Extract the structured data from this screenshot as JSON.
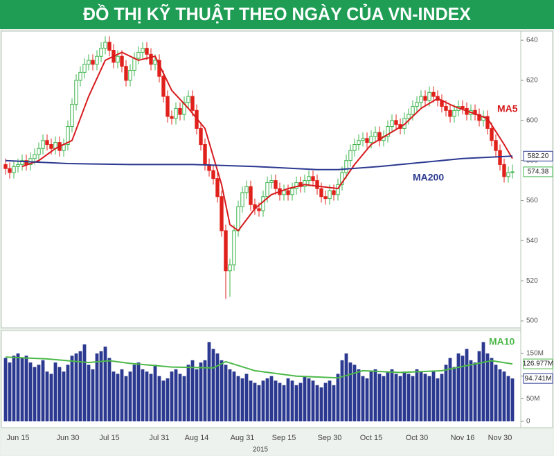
{
  "title": "ĐỒ THỊ KỸ THUẬT THEO NGÀY CỦA VN-INDEX",
  "chart_data": [
    {
      "type": "candlestick",
      "up_color": "#3cb44b",
      "down_color": "#e0201b",
      "ylim": [
        497.6,
        642.8
      ],
      "yticks": [
        500,
        520,
        540,
        560,
        580,
        600,
        620,
        640
      ],
      "open": [
        578,
        576,
        574,
        577,
        578,
        580,
        578,
        581,
        583,
        586,
        590,
        588,
        586,
        589,
        585,
        588,
        597,
        608,
        620,
        624,
        628,
        630,
        628,
        632,
        636,
        639,
        635,
        629,
        632,
        627,
        620,
        625,
        631,
        634,
        636,
        633,
        628,
        630,
        622,
        612,
        602,
        601,
        606,
        603,
        609,
        612,
        605,
        596,
        588,
        578,
        575,
        571,
        562,
        545,
        525,
        528,
        545,
        557,
        564,
        567,
        558,
        556,
        555,
        562,
        569,
        570,
        566,
        563,
        565,
        563,
        566,
        569,
        567,
        570,
        572,
        570,
        566,
        562,
        561,
        565,
        563,
        568,
        574,
        580,
        585,
        588,
        590,
        591,
        589,
        592,
        594,
        590,
        592,
        597,
        600,
        598,
        596,
        601,
        603,
        607,
        609,
        612,
        610,
        614,
        612,
        610,
        607,
        605,
        602,
        605,
        607,
        606,
        603,
        605,
        603,
        600,
        602,
        596,
        590,
        585,
        578,
        572,
        574
      ],
      "high": [
        581,
        579,
        580,
        581,
        583,
        583,
        584,
        586,
        589,
        593,
        593,
        591,
        592,
        592,
        591,
        600,
        611,
        623,
        627,
        631,
        633,
        633,
        635,
        639,
        642,
        642,
        638,
        635,
        635,
        630,
        628,
        634,
        637,
        639,
        639,
        636,
        633,
        633,
        625,
        615,
        605,
        609,
        609,
        612,
        615,
        615,
        608,
        599,
        591,
        581,
        578,
        574,
        565,
        548,
        531,
        548,
        560,
        567,
        570,
        570,
        561,
        559,
        565,
        572,
        573,
        573,
        569,
        568,
        568,
        569,
        572,
        572,
        573,
        575,
        575,
        573,
        569,
        565,
        568,
        568,
        571,
        577,
        583,
        588,
        591,
        593,
        594,
        594,
        595,
        597,
        597,
        595,
        600,
        603,
        603,
        601,
        604,
        606,
        610,
        612,
        615,
        615,
        617,
        617,
        615,
        613,
        610,
        608,
        608,
        610,
        610,
        609,
        608,
        608,
        606,
        605,
        605,
        599,
        593,
        588,
        581,
        577,
        578
      ],
      "low": [
        573,
        571,
        571,
        574,
        575,
        575,
        575,
        578,
        580,
        583,
        585,
        583,
        583,
        582,
        582,
        585,
        594,
        605,
        617,
        621,
        625,
        625,
        625,
        629,
        633,
        632,
        626,
        626,
        624,
        617,
        617,
        622,
        628,
        631,
        630,
        625,
        625,
        619,
        609,
        599,
        598,
        598,
        600,
        600,
        606,
        602,
        593,
        585,
        575,
        572,
        568,
        559,
        542,
        511,
        512,
        525,
        542,
        554,
        561,
        555,
        553,
        552,
        552,
        559,
        566,
        563,
        560,
        560,
        560,
        560,
        563,
        564,
        564,
        567,
        567,
        563,
        559,
        558,
        558,
        560,
        560,
        565,
        571,
        577,
        582,
        585,
        587,
        586,
        586,
        589,
        587,
        587,
        589,
        594,
        595,
        593,
        593,
        598,
        600,
        604,
        606,
        607,
        607,
        609,
        607,
        604,
        602,
        599,
        599,
        602,
        603,
        600,
        600,
        600,
        597,
        597,
        593,
        587,
        582,
        575,
        569,
        569,
        571
      ],
      "close": [
        576,
        574,
        577,
        578,
        580,
        578,
        581,
        583,
        586,
        590,
        588,
        586,
        589,
        585,
        588,
        597,
        608,
        620,
        624,
        628,
        630,
        628,
        632,
        636,
        639,
        635,
        629,
        632,
        627,
        620,
        625,
        631,
        634,
        636,
        633,
        628,
        630,
        622,
        612,
        602,
        601,
        606,
        603,
        609,
        612,
        605,
        596,
        588,
        578,
        575,
        571,
        562,
        545,
        525,
        528,
        545,
        557,
        564,
        567,
        558,
        556,
        555,
        562,
        569,
        570,
        566,
        563,
        565,
        563,
        566,
        569,
        567,
        570,
        572,
        570,
        566,
        562,
        561,
        565,
        563,
        568,
        574,
        580,
        585,
        588,
        590,
        591,
        589,
        592,
        594,
        590,
        592,
        597,
        600,
        598,
        596,
        601,
        603,
        607,
        609,
        612,
        610,
        614,
        612,
        610,
        607,
        605,
        602,
        605,
        607,
        606,
        603,
        605,
        603,
        600,
        602,
        596,
        590,
        585,
        578,
        572,
        574,
        574.38
      ],
      "last_value": 574.38,
      "lines": [
        {
          "name": "MA5",
          "color": "#d7191c",
          "x": [
            4,
            8,
            12,
            16,
            20,
            24,
            28,
            32,
            36,
            40,
            44,
            48,
            52,
            54,
            56,
            60,
            64,
            68,
            72,
            76,
            80,
            84,
            88,
            92,
            96,
            100,
            104,
            108,
            112,
            116,
            120,
            122
          ],
          "values": [
            577,
            580,
            586,
            590,
            612,
            630,
            634,
            630,
            632,
            615,
            606,
            596,
            568,
            548,
            545,
            556,
            563,
            566,
            568,
            567,
            566,
            578,
            588,
            593,
            598,
            606,
            611,
            607,
            604,
            601,
            588,
            581
          ]
        },
        {
          "name": "MA200",
          "color": "#2b3990",
          "x": [
            0,
            15,
            30,
            45,
            60,
            75,
            80,
            90,
            100,
            110,
            122
          ],
          "values": [
            580,
            578.5,
            578,
            578,
            577,
            575.5,
            575.5,
            577,
            579,
            581,
            582.2
          ],
          "last_label": {
            "value": 582.2,
            "label": "582.20"
          }
        }
      ]
    },
    {
      "type": "bar",
      "color": "#2b3990",
      "xlabel": "2015",
      "ylim": [
        -10.7,
        196
      ],
      "yticks": [
        0,
        {
          "value": 50,
          "label": "50M"
        },
        {
          "value": 100,
          "label": "100M"
        },
        {
          "value": 150,
          "label": "150M"
        }
      ],
      "categories": [
        null,
        null,
        null,
        "Jun 15",
        null,
        null,
        null,
        null,
        null,
        null,
        null,
        null,
        null,
        null,
        null,
        "Jun 30",
        null,
        null,
        null,
        null,
        null,
        null,
        null,
        null,
        null,
        "Jul 15",
        null,
        null,
        null,
        null,
        null,
        null,
        null,
        null,
        null,
        null,
        null,
        "Jul 31",
        null,
        null,
        null,
        null,
        null,
        null,
        null,
        null,
        "Aug 14",
        null,
        null,
        null,
        null,
        null,
        null,
        null,
        null,
        null,
        null,
        "Aug 31",
        null,
        null,
        null,
        null,
        null,
        null,
        null,
        null,
        null,
        "Sep 15",
        null,
        null,
        null,
        null,
        null,
        null,
        null,
        null,
        null,
        null,
        "Sep 30",
        null,
        null,
        null,
        null,
        null,
        null,
        null,
        null,
        null,
        "Oct 15",
        null,
        null,
        null,
        null,
        null,
        null,
        null,
        null,
        null,
        null,
        "Oct 30",
        null,
        null,
        null,
        null,
        null,
        null,
        null,
        null,
        null,
        null,
        "Nov 16",
        null,
        null,
        null,
        null,
        null,
        null,
        null,
        null,
        "Nov 30",
        null,
        null,
        null
      ],
      "values": [
        140,
        130,
        145,
        150,
        140,
        145,
        130,
        120,
        125,
        135,
        110,
        105,
        130,
        120,
        110,
        125,
        145,
        150,
        155,
        170,
        125,
        115,
        150,
        155,
        165,
        140,
        110,
        105,
        115,
        100,
        110,
        125,
        130,
        115,
        110,
        105,
        125,
        100,
        90,
        95,
        110,
        115,
        105,
        100,
        125,
        135,
        115,
        130,
        135,
        175,
        160,
        150,
        135,
        125,
        115,
        110,
        100,
        95,
        105,
        90,
        85,
        80,
        90,
        95,
        100,
        90,
        85,
        80,
        95,
        90,
        80,
        85,
        100,
        95,
        90,
        80,
        75,
        85,
        90,
        80,
        105,
        135,
        150,
        130,
        125,
        115,
        100,
        95,
        110,
        115,
        105,
        100,
        110,
        115,
        105,
        100,
        110,
        105,
        100,
        115,
        110,
        105,
        100,
        110,
        95,
        105,
        125,
        140,
        120,
        150,
        145,
        160,
        135,
        130,
        155,
        175,
        150,
        140,
        125,
        115,
        110,
        100,
        94.741
      ],
      "last_label": {
        "value": 94.741,
        "label": "94.741M"
      },
      "lines": [
        {
          "name": "MA10",
          "color": "#4cb848",
          "x": [
            0,
            10,
            20,
            25,
            30,
            40,
            50,
            53,
            60,
            70,
            80,
            86,
            95,
            105,
            112,
            117,
            122
          ],
          "values": [
            142,
            138,
            130,
            134,
            128,
            120,
            118,
            132,
            112,
            100,
            96,
            112,
            108,
            112,
            125,
            134,
            126.977
          ],
          "last_label": {
            "value": 126.977,
            "label": "126.977M"
          }
        }
      ]
    }
  ]
}
